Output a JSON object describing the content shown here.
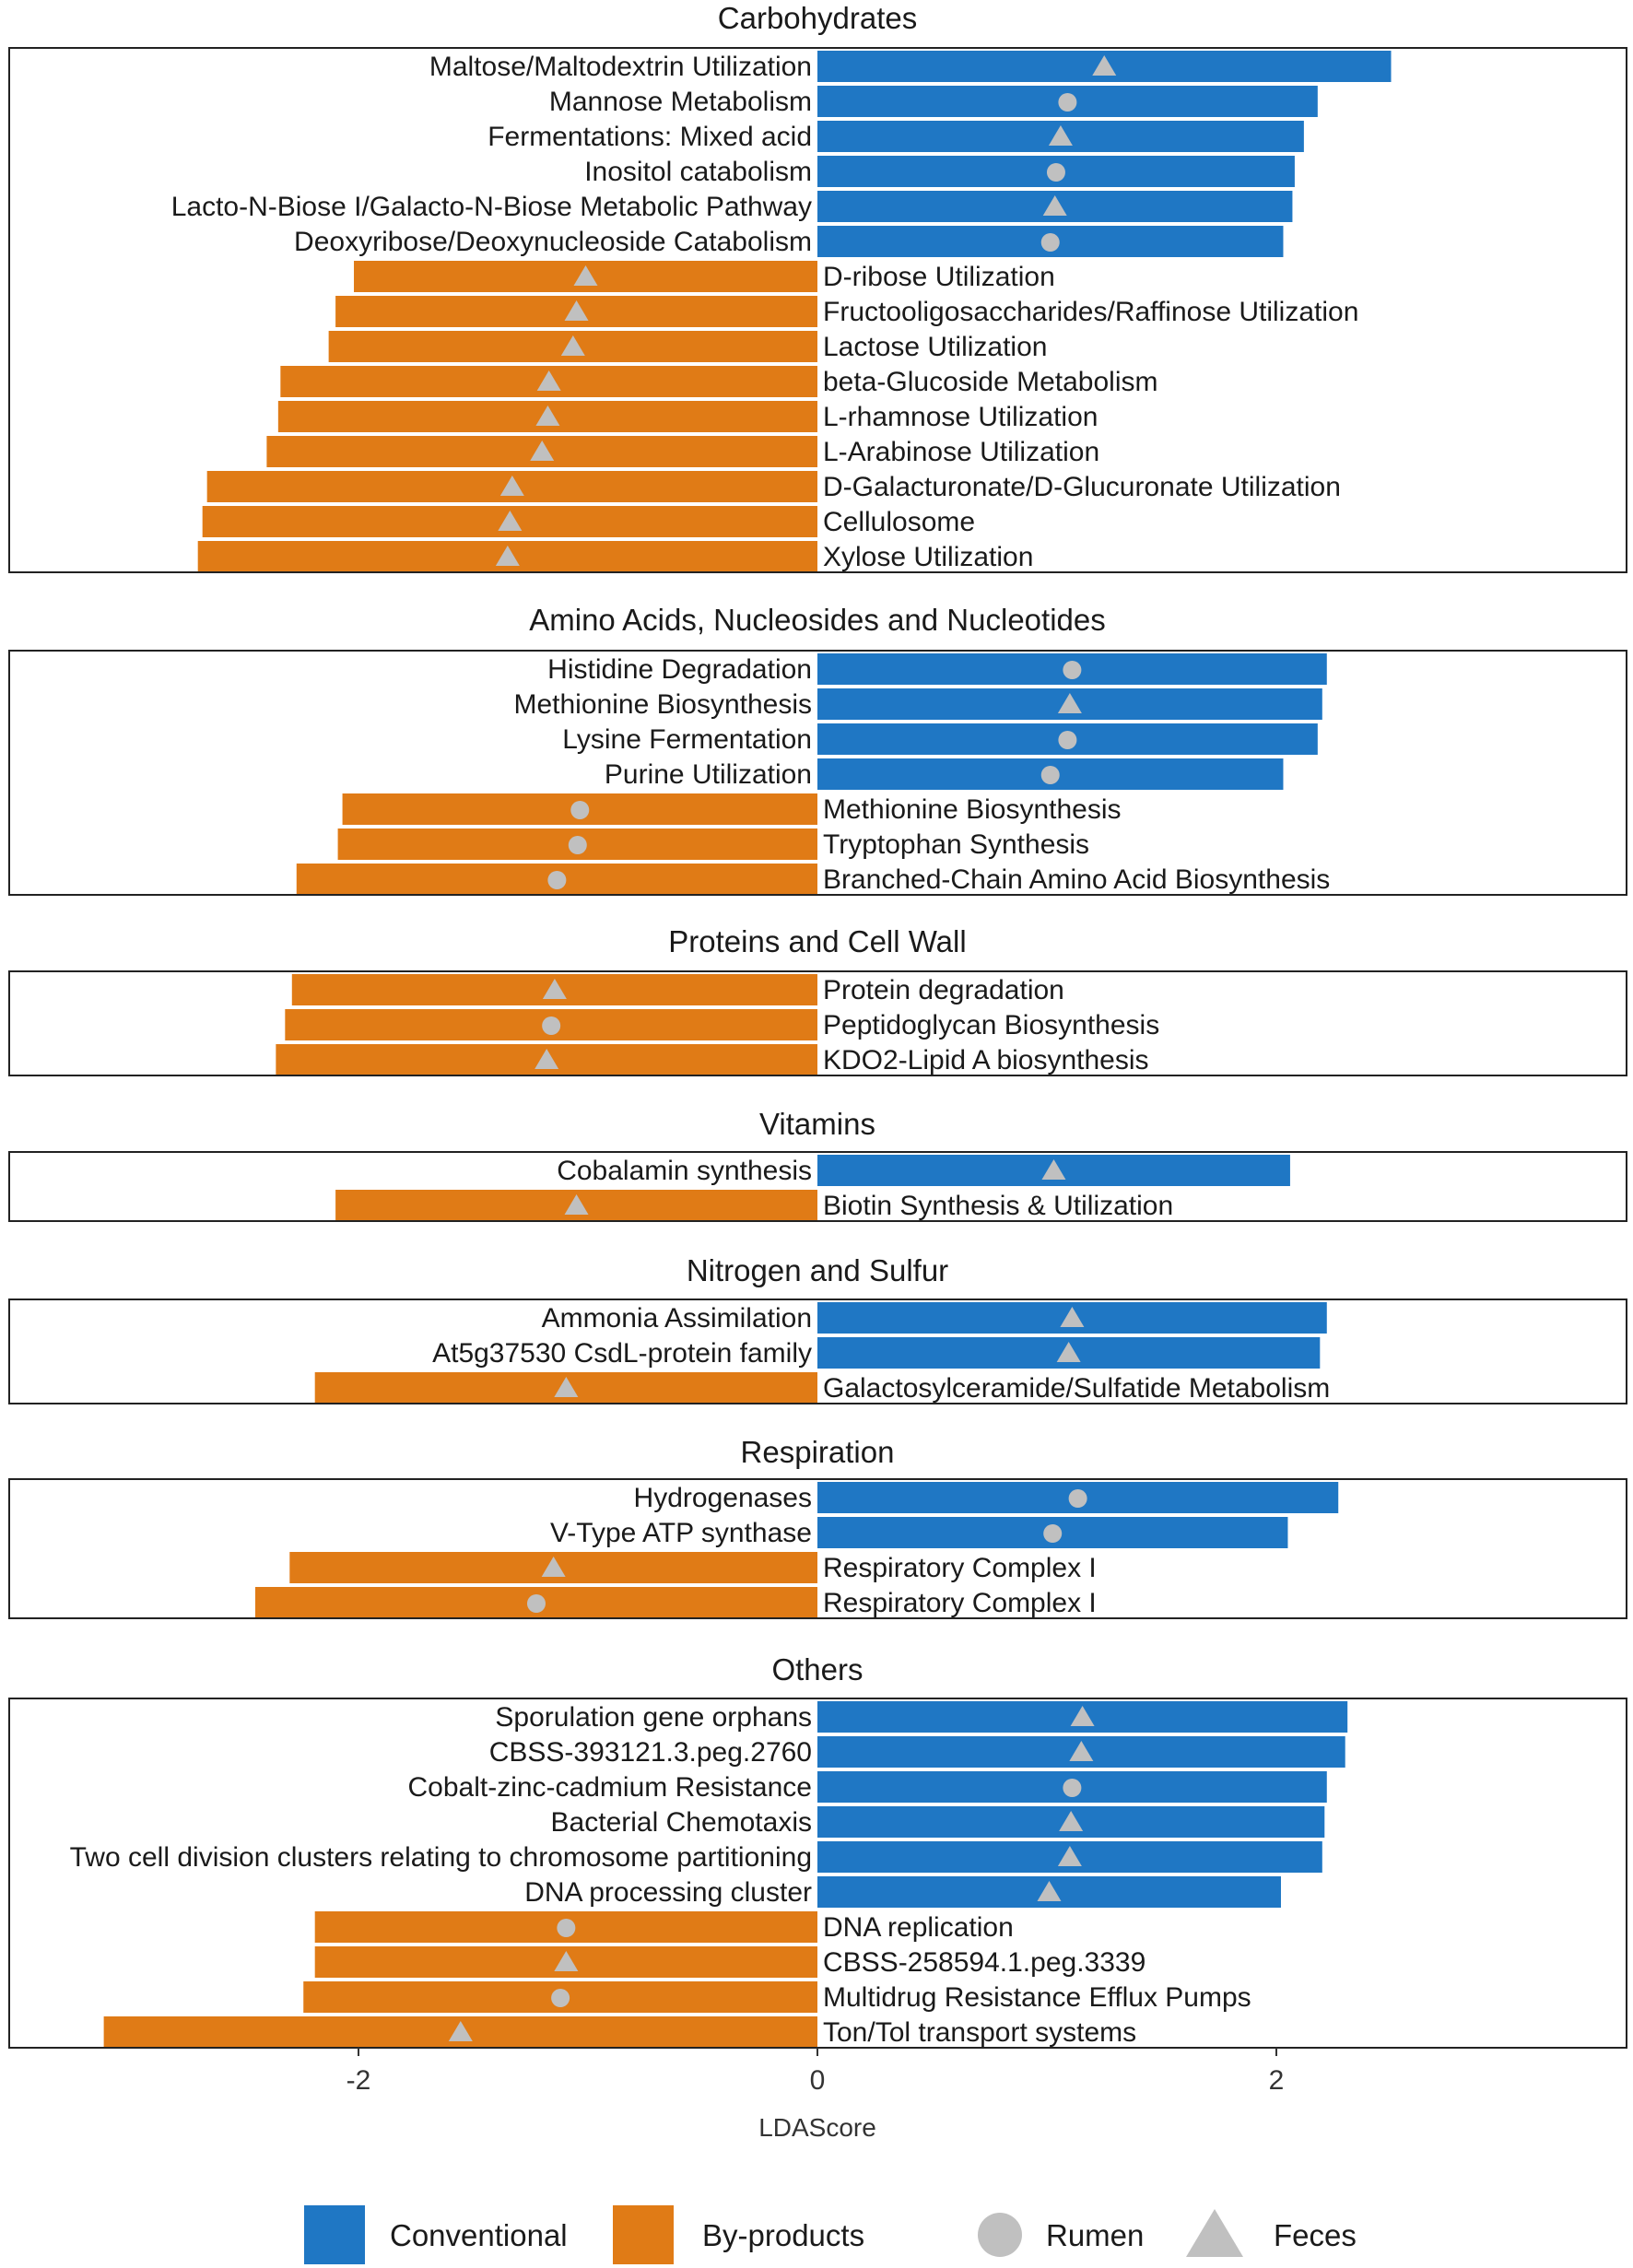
{
  "chart_data": {
    "type": "bar",
    "orientation": "horizontal",
    "xlabel": "LDAScore",
    "xlim": [
      -3.5,
      3.5
    ],
    "xticks": [
      -2,
      0,
      2
    ],
    "xtick_labels": [
      "-2",
      "0",
      "2"
    ],
    "colors": {
      "Conventional": "#1f77c4",
      "By-products": "#e07b16",
      "marker": "#c0c0c0",
      "frame": "#222222"
    },
    "legend": [
      {
        "label": "Conventional",
        "kind": "fill",
        "color": "#1f77c4"
      },
      {
        "label": "By-products",
        "kind": "fill",
        "color": "#e07b16"
      },
      {
        "label": "Rumen",
        "kind": "circle",
        "color": "#c0c0c0"
      },
      {
        "label": "Feces",
        "kind": "triangle",
        "color": "#c0c0c0"
      }
    ],
    "panels": [
      {
        "title": "Carbohydrates",
        "rows": [
          {
            "label": "Maltose/Maltodextrin Utilization",
            "value": 2.5,
            "group": "Conventional",
            "marker": "Feces"
          },
          {
            "label": "Mannose Metabolism",
            "value": 2.18,
            "group": "Conventional",
            "marker": "Rumen"
          },
          {
            "label": "Fermentations: Mixed acid",
            "value": 2.12,
            "group": "Conventional",
            "marker": "Feces"
          },
          {
            "label": "Inositol catabolism",
            "value": 2.08,
            "group": "Conventional",
            "marker": "Rumen"
          },
          {
            "label": "Lacto-N-Biose I/Galacto-N-Biose Metabolic Pathway",
            "value": 2.07,
            "group": "Conventional",
            "marker": "Feces"
          },
          {
            "label": "Deoxyribose/Deoxynucleoside Catabolism",
            "value": 2.03,
            "group": "Conventional",
            "marker": "Rumen"
          },
          {
            "label": "D-ribose Utilization",
            "value": -2.02,
            "group": "By-products",
            "marker": "Feces"
          },
          {
            "label": "Fructooligosaccharides/Raffinose Utilization",
            "value": -2.1,
            "group": "By-products",
            "marker": "Feces"
          },
          {
            "label": "Lactose Utilization",
            "value": -2.13,
            "group": "By-products",
            "marker": "Feces"
          },
          {
            "label": "beta-Glucoside Metabolism",
            "value": -2.34,
            "group": "By-products",
            "marker": "Feces"
          },
          {
            "label": "L-rhamnose Utilization",
            "value": -2.35,
            "group": "By-products",
            "marker": "Feces"
          },
          {
            "label": "L-Arabinose Utilization",
            "value": -2.4,
            "group": "By-products",
            "marker": "Feces"
          },
          {
            "label": "D-Galacturonate/D-Glucuronate Utilization",
            "value": -2.66,
            "group": "By-products",
            "marker": "Feces"
          },
          {
            "label": "Cellulosome",
            "value": -2.68,
            "group": "By-products",
            "marker": "Feces"
          },
          {
            "label": "Xylose Utilization",
            "value": -2.7,
            "group": "By-products",
            "marker": "Feces"
          }
        ]
      },
      {
        "title": "Amino Acids, Nucleosides and Nucleotides",
        "rows": [
          {
            "label": "Histidine Degradation",
            "value": 2.22,
            "group": "Conventional",
            "marker": "Rumen"
          },
          {
            "label": "Methionine Biosynthesis",
            "value": 2.2,
            "group": "Conventional",
            "marker": "Feces"
          },
          {
            "label": "Lysine Fermentation",
            "value": 2.18,
            "group": "Conventional",
            "marker": "Rumen"
          },
          {
            "label": "Purine Utilization",
            "value": 2.03,
            "group": "Conventional",
            "marker": "Rumen"
          },
          {
            "label": "Methionine Biosynthesis",
            "value": -2.07,
            "group": "By-products",
            "marker": "Rumen"
          },
          {
            "label": "Tryptophan Synthesis",
            "value": -2.09,
            "group": "By-products",
            "marker": "Rumen"
          },
          {
            "label": "Branched-Chain Amino Acid Biosynthesis",
            "value": -2.27,
            "group": "By-products",
            "marker": "Rumen"
          }
        ]
      },
      {
        "title": "Proteins and Cell Wall",
        "rows": [
          {
            "label": "Protein degradation",
            "value": -2.29,
            "group": "By-products",
            "marker": "Feces"
          },
          {
            "label": "Peptidoglycan Biosynthesis",
            "value": -2.32,
            "group": "By-products",
            "marker": "Rumen"
          },
          {
            "label": "KDO2-Lipid A biosynthesis",
            "value": -2.36,
            "group": "By-products",
            "marker": "Feces"
          }
        ]
      },
      {
        "title": "Vitamins",
        "rows": [
          {
            "label": "Cobalamin synthesis",
            "value": 2.06,
            "group": "Conventional",
            "marker": "Feces"
          },
          {
            "label": "Biotin Synthesis & Utilization",
            "value": -2.1,
            "group": "By-products",
            "marker": "Feces"
          }
        ]
      },
      {
        "title": "Nitrogen and Sulfur",
        "rows": [
          {
            "label": "Ammonia Assimilation",
            "value": 2.22,
            "group": "Conventional",
            "marker": "Feces"
          },
          {
            "label": "At5g37530 CsdL-protein family",
            "value": 2.19,
            "group": "Conventional",
            "marker": "Feces"
          },
          {
            "label": "Galactosylceramide/Sulfatide Metabolism",
            "value": -2.19,
            "group": "By-products",
            "marker": "Feces"
          }
        ]
      },
      {
        "title": "Respiration",
        "rows": [
          {
            "label": "Hydrogenases",
            "value": 2.27,
            "group": "Conventional",
            "marker": "Rumen"
          },
          {
            "label": "V-Type ATP synthase",
            "value": 2.05,
            "group": "Conventional",
            "marker": "Rumen"
          },
          {
            "label": "Respiratory Complex I",
            "value": -2.3,
            "group": "By-products",
            "marker": "Feces"
          },
          {
            "label": "Respiratory Complex I",
            "value": -2.45,
            "group": "By-products",
            "marker": "Rumen"
          }
        ]
      },
      {
        "title": "Others",
        "rows": [
          {
            "label": "Sporulation gene orphans",
            "value": 2.31,
            "group": "Conventional",
            "marker": "Feces"
          },
          {
            "label": "CBSS-393121.3.peg.2760",
            "value": 2.3,
            "group": "Conventional",
            "marker": "Feces"
          },
          {
            "label": "Cobalt-zinc-cadmium Resistance",
            "value": 2.22,
            "group": "Conventional",
            "marker": "Rumen"
          },
          {
            "label": "Bacterial Chemotaxis",
            "value": 2.21,
            "group": "Conventional",
            "marker": "Feces"
          },
          {
            "label": "Two cell division clusters relating to chromosome partitioning",
            "value": 2.2,
            "group": "Conventional",
            "marker": "Feces"
          },
          {
            "label": "DNA processing cluster",
            "value": 2.02,
            "group": "Conventional",
            "marker": "Feces"
          },
          {
            "label": "DNA replication",
            "value": -2.19,
            "group": "By-products",
            "marker": "Rumen"
          },
          {
            "label": "CBSS-258594.1.peg.3339",
            "value": -2.19,
            "group": "By-products",
            "marker": "Feces"
          },
          {
            "label": "Multidrug Resistance Efflux Pumps",
            "value": -2.24,
            "group": "By-products",
            "marker": "Rumen"
          },
          {
            "label": "Ton/Tol transport systems",
            "value": -3.11,
            "group": "By-products",
            "marker": "Feces"
          }
        ]
      }
    ]
  }
}
